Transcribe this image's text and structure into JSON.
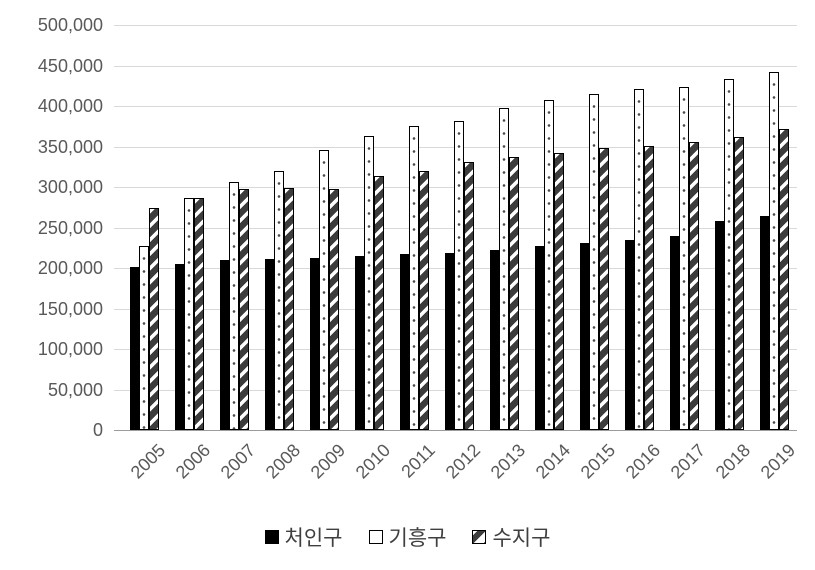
{
  "chart_data": {
    "type": "bar",
    "title": "",
    "xlabel": "",
    "ylabel": "",
    "categories": [
      "2005",
      "2006",
      "2007",
      "2008",
      "2009",
      "2010",
      "2011",
      "2012",
      "2013",
      "2014",
      "2015",
      "2016",
      "2017",
      "2018",
      "2019"
    ],
    "series": [
      {
        "name": "처인구",
        "key": "cheoingu",
        "style": "solid-black",
        "values": [
          201000,
          205000,
          210000,
          211000,
          212000,
          215000,
          217000,
          219000,
          222000,
          227000,
          231000,
          235000,
          240000,
          258000,
          264000
        ]
      },
      {
        "name": "기흥구",
        "key": "giheunggu",
        "style": "white-dotted",
        "values": [
          227000,
          287000,
          306000,
          320000,
          346000,
          363000,
          375000,
          381000,
          398000,
          407000,
          415000,
          421000,
          424000,
          433000,
          442000
        ]
      },
      {
        "name": "수지구",
        "key": "sujigu",
        "style": "diagonal-striped",
        "values": [
          274000,
          287000,
          298000,
          299000,
          298000,
          314000,
          320000,
          331000,
          337000,
          342000,
          348000,
          351000,
          355000,
          362000,
          371000
        ]
      }
    ],
    "ylim": [
      0,
      500000
    ],
    "ytick_step": 50000,
    "y_tick_labels": [
      "500,000",
      "450,000",
      "400,000",
      "350,000",
      "300,000",
      "250,000",
      "200,000",
      "150,000",
      "100,000",
      "50,000",
      "0"
    ],
    "grid": true,
    "legend_position": "bottom",
    "legend_markers": [
      "black-square",
      "white-square",
      "diagonal-square"
    ]
  },
  "colors": {
    "background": "#ffffff",
    "axis_text": "#595959",
    "legend_text": "#3f3f3f",
    "gridline": "#d9d9d9",
    "axis_line": "#9c9c9c",
    "bar_black": "#000000",
    "bar_outline": "#000000",
    "pattern_stripe": "#3d3d3d",
    "pattern_dot": "#4a4a4a"
  }
}
